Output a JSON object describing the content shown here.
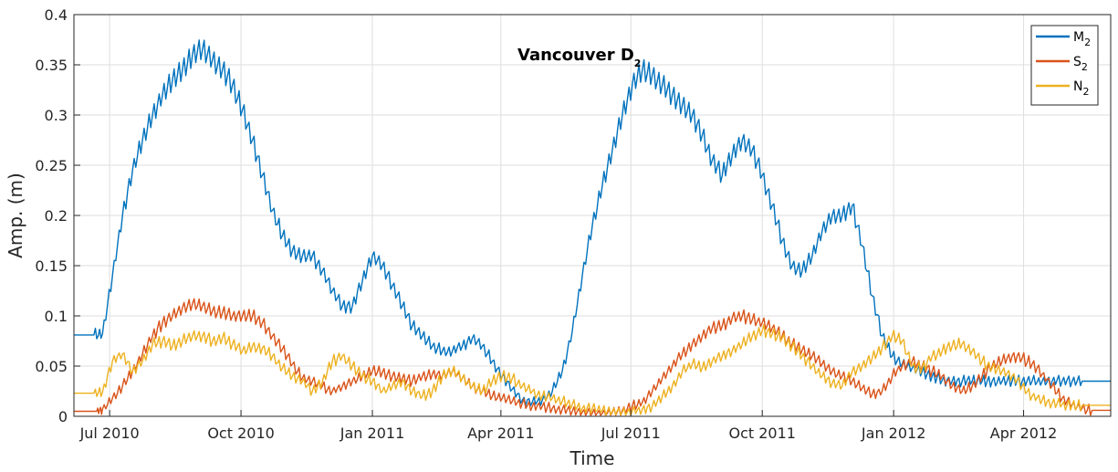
{
  "chart_data": {
    "type": "line",
    "title": "Vancouver D",
    "title_subscript": "2",
    "xlabel": "Time",
    "ylabel": "Amp. (m)",
    "ylim": [
      0,
      0.4
    ],
    "yticks": [
      0,
      0.05,
      0.1,
      0.15,
      0.2,
      0.25,
      0.3,
      0.35,
      0.4
    ],
    "ytick_labels": [
      "0",
      "0.05",
      "0.1",
      "0.15",
      "0.2",
      "0.25",
      "0.3",
      "0.35",
      "0.4"
    ],
    "xlim": [
      "2010-06-06",
      "2012-06-01"
    ],
    "xticks": [
      "2010-07-01",
      "2010-10-01",
      "2011-01-01",
      "2011-04-01",
      "2011-07-01",
      "2011-10-01",
      "2012-01-01",
      "2012-04-01"
    ],
    "xtick_labels": [
      "Jul 2010",
      "Oct 2010",
      "Jan 2011",
      "Apr 2011",
      "Jul 2011",
      "Oct 2011",
      "Jan 2012",
      "Apr 2012"
    ],
    "grid": true,
    "legend_position": "top-right",
    "series": [
      {
        "name": "M",
        "subscript": "2",
        "color": "#0072BD",
        "x": [
          "2010-06-06",
          "2010-06-20",
          "2010-06-26",
          "2010-07-03",
          "2010-07-10",
          "2010-07-17",
          "2010-07-24",
          "2010-07-31",
          "2010-08-07",
          "2010-08-14",
          "2010-08-21",
          "2010-08-28",
          "2010-09-04",
          "2010-09-11",
          "2010-09-18",
          "2010-09-25",
          "2010-10-02",
          "2010-10-09",
          "2010-10-16",
          "2010-10-23",
          "2010-10-30",
          "2010-11-06",
          "2010-11-13",
          "2010-11-20",
          "2010-11-27",
          "2010-12-04",
          "2010-12-11",
          "2010-12-18",
          "2010-12-25",
          "2011-01-01",
          "2011-01-08",
          "2011-01-15",
          "2011-01-22",
          "2011-01-29",
          "2011-02-05",
          "2011-02-12",
          "2011-02-19",
          "2011-02-26",
          "2011-03-05",
          "2011-03-12",
          "2011-03-19",
          "2011-03-26",
          "2011-04-02",
          "2011-04-09",
          "2011-04-16",
          "2011-04-23",
          "2011-04-30",
          "2011-05-07",
          "2011-05-14",
          "2011-05-21",
          "2011-05-28",
          "2011-06-04",
          "2011-06-11",
          "2011-06-18",
          "2011-06-25",
          "2011-07-02",
          "2011-07-09",
          "2011-07-16",
          "2011-07-23",
          "2011-07-30",
          "2011-08-06",
          "2011-08-13",
          "2011-08-20",
          "2011-08-27",
          "2011-09-03",
          "2011-09-10",
          "2011-09-17",
          "2011-09-24",
          "2011-10-01",
          "2011-10-08",
          "2011-10-15",
          "2011-10-22",
          "2011-10-29",
          "2011-11-05",
          "2011-11-12",
          "2011-11-19",
          "2011-11-26",
          "2011-12-03",
          "2011-12-10",
          "2011-12-17",
          "2011-12-24",
          "2011-12-31",
          "2012-01-07",
          "2012-01-14",
          "2012-01-21",
          "2012-01-28",
          "2012-02-04",
          "2012-02-11",
          "2012-02-18",
          "2012-02-25",
          "2012-03-03",
          "2012-03-10",
          "2012-03-17",
          "2012-03-24",
          "2012-03-31",
          "2012-04-07",
          "2012-04-14",
          "2012-04-21",
          "2012-04-28",
          "2012-05-05",
          "2012-05-12",
          "2012-05-19",
          "2012-06-01"
        ],
        "y": [
          0.081,
          0.081,
          0.082,
          0.14,
          0.2,
          0.245,
          0.275,
          0.3,
          0.32,
          0.335,
          0.345,
          0.36,
          0.365,
          0.355,
          0.345,
          0.33,
          0.305,
          0.275,
          0.24,
          0.205,
          0.18,
          0.165,
          0.16,
          0.16,
          0.145,
          0.125,
          0.11,
          0.11,
          0.135,
          0.16,
          0.15,
          0.13,
          0.11,
          0.09,
          0.08,
          0.07,
          0.065,
          0.065,
          0.07,
          0.078,
          0.07,
          0.055,
          0.04,
          0.027,
          0.016,
          0.014,
          0.016,
          0.025,
          0.045,
          0.085,
          0.14,
          0.19,
          0.23,
          0.265,
          0.3,
          0.33,
          0.345,
          0.34,
          0.33,
          0.32,
          0.31,
          0.3,
          0.28,
          0.255,
          0.24,
          0.26,
          0.275,
          0.265,
          0.24,
          0.21,
          0.175,
          0.15,
          0.145,
          0.16,
          0.185,
          0.2,
          0.2,
          0.21,
          0.17,
          0.12,
          0.08,
          0.06,
          0.052,
          0.048,
          0.045,
          0.04,
          0.036,
          0.035,
          0.035,
          0.035,
          0.035,
          0.035,
          0.035,
          0.035,
          0.035,
          0.035,
          0.035,
          0.035,
          0.035,
          0.035,
          0.035,
          0.035,
          0.035
        ]
      },
      {
        "name": "S",
        "subscript": "2",
        "color": "#D95319",
        "x": [
          "2010-06-06",
          "2010-06-22",
          "2010-06-26",
          "2010-07-03",
          "2010-07-10",
          "2010-07-17",
          "2010-07-24",
          "2010-07-31",
          "2010-08-07",
          "2010-08-14",
          "2010-08-21",
          "2010-08-28",
          "2010-09-04",
          "2010-09-11",
          "2010-09-18",
          "2010-09-25",
          "2010-10-02",
          "2010-10-09",
          "2010-10-16",
          "2010-10-23",
          "2010-10-30",
          "2010-11-06",
          "2010-11-13",
          "2010-11-20",
          "2010-11-27",
          "2010-12-04",
          "2010-12-11",
          "2010-12-18",
          "2010-12-25",
          "2011-01-01",
          "2011-01-08",
          "2011-01-15",
          "2011-01-22",
          "2011-01-29",
          "2011-02-05",
          "2011-02-12",
          "2011-02-19",
          "2011-02-26",
          "2011-03-05",
          "2011-03-12",
          "2011-03-19",
          "2011-03-26",
          "2011-04-02",
          "2011-04-09",
          "2011-04-16",
          "2011-04-23",
          "2011-04-30",
          "2011-05-07",
          "2011-05-14",
          "2011-05-21",
          "2011-05-28",
          "2011-06-04",
          "2011-06-11",
          "2011-06-18",
          "2011-06-25",
          "2011-07-02",
          "2011-07-09",
          "2011-07-16",
          "2011-07-23",
          "2011-07-30",
          "2011-08-06",
          "2011-08-13",
          "2011-08-20",
          "2011-08-27",
          "2011-09-03",
          "2011-09-10",
          "2011-09-17",
          "2011-09-24",
          "2011-10-01",
          "2011-10-08",
          "2011-10-15",
          "2011-10-22",
          "2011-10-29",
          "2011-11-05",
          "2011-11-12",
          "2011-11-19",
          "2011-11-26",
          "2011-12-03",
          "2011-12-10",
          "2011-12-17",
          "2011-12-24",
          "2011-12-31",
          "2012-01-07",
          "2012-01-14",
          "2012-01-21",
          "2012-01-28",
          "2012-02-04",
          "2012-02-11",
          "2012-02-18",
          "2012-02-25",
          "2012-03-03",
          "2012-03-10",
          "2012-03-17",
          "2012-03-24",
          "2012-03-31",
          "2012-04-07",
          "2012-04-14",
          "2012-04-21",
          "2012-04-28",
          "2012-05-05",
          "2012-05-12",
          "2012-05-19",
          "2012-06-01"
        ],
        "y": [
          0.005,
          0.005,
          0.007,
          0.018,
          0.03,
          0.045,
          0.062,
          0.08,
          0.093,
          0.1,
          0.108,
          0.112,
          0.11,
          0.105,
          0.103,
          0.1,
          0.1,
          0.1,
          0.093,
          0.08,
          0.067,
          0.052,
          0.038,
          0.035,
          0.03,
          0.025,
          0.03,
          0.035,
          0.04,
          0.045,
          0.044,
          0.04,
          0.038,
          0.035,
          0.04,
          0.042,
          0.04,
          0.045,
          0.038,
          0.03,
          0.025,
          0.02,
          0.018,
          0.015,
          0.013,
          0.01,
          0.01,
          0.008,
          0.007,
          0.005,
          0.004,
          0.003,
          0.003,
          0.004,
          0.006,
          0.01,
          0.014,
          0.025,
          0.038,
          0.05,
          0.062,
          0.072,
          0.08,
          0.088,
          0.09,
          0.098,
          0.1,
          0.096,
          0.093,
          0.088,
          0.08,
          0.072,
          0.066,
          0.06,
          0.052,
          0.045,
          0.04,
          0.035,
          0.028,
          0.022,
          0.025,
          0.04,
          0.05,
          0.055,
          0.05,
          0.045,
          0.04,
          0.03,
          0.025,
          0.03,
          0.04,
          0.05,
          0.055,
          0.06,
          0.058,
          0.052,
          0.042,
          0.03,
          0.018,
          0.012,
          0.008,
          0.006,
          0.006
        ]
      },
      {
        "name": "N",
        "subscript": "2",
        "color": "#EDB120",
        "x": [
          "2010-06-06",
          "2010-06-20",
          "2010-06-26",
          "2010-07-03",
          "2010-07-10",
          "2010-07-17",
          "2010-07-24",
          "2010-07-31",
          "2010-08-07",
          "2010-08-14",
          "2010-08-21",
          "2010-08-28",
          "2010-09-04",
          "2010-09-11",
          "2010-09-18",
          "2010-09-25",
          "2010-10-02",
          "2010-10-09",
          "2010-10-16",
          "2010-10-23",
          "2010-10-30",
          "2010-11-06",
          "2010-11-13",
          "2010-11-20",
          "2010-11-27",
          "2010-12-04",
          "2010-12-11",
          "2010-12-18",
          "2010-12-25",
          "2011-01-01",
          "2011-01-08",
          "2011-01-15",
          "2011-01-22",
          "2011-01-29",
          "2011-02-05",
          "2011-02-12",
          "2011-02-19",
          "2011-02-26",
          "2011-03-05",
          "2011-03-12",
          "2011-03-19",
          "2011-03-26",
          "2011-04-02",
          "2011-04-09",
          "2011-04-16",
          "2011-04-23",
          "2011-04-30",
          "2011-05-07",
          "2011-05-14",
          "2011-05-21",
          "2011-05-28",
          "2011-06-04",
          "2011-06-11",
          "2011-06-18",
          "2011-06-25",
          "2011-07-02",
          "2011-07-09",
          "2011-07-16",
          "2011-07-23",
          "2011-07-30",
          "2011-08-06",
          "2011-08-13",
          "2011-08-20",
          "2011-08-27",
          "2011-09-03",
          "2011-09-10",
          "2011-09-17",
          "2011-09-24",
          "2011-10-01",
          "2011-10-08",
          "2011-10-15",
          "2011-10-22",
          "2011-10-29",
          "2011-11-05",
          "2011-11-12",
          "2011-11-19",
          "2011-11-26",
          "2011-12-03",
          "2011-12-10",
          "2011-12-17",
          "2011-12-24",
          "2011-12-31",
          "2012-01-07",
          "2012-01-14",
          "2012-01-21",
          "2012-01-28",
          "2012-02-04",
          "2012-02-11",
          "2012-02-18",
          "2012-02-25",
          "2012-03-03",
          "2012-03-10",
          "2012-03-17",
          "2012-03-24",
          "2012-03-31",
          "2012-04-07",
          "2012-04-14",
          "2012-04-21",
          "2012-04-28",
          "2012-05-05",
          "2012-05-12",
          "2012-05-19",
          "2012-06-01"
        ],
        "y": [
          0.023,
          0.023,
          0.024,
          0.055,
          0.062,
          0.045,
          0.055,
          0.072,
          0.075,
          0.07,
          0.075,
          0.08,
          0.08,
          0.075,
          0.078,
          0.072,
          0.065,
          0.07,
          0.068,
          0.06,
          0.048,
          0.04,
          0.035,
          0.025,
          0.035,
          0.055,
          0.06,
          0.05,
          0.04,
          0.035,
          0.025,
          0.03,
          0.035,
          0.025,
          0.02,
          0.025,
          0.04,
          0.045,
          0.038,
          0.03,
          0.025,
          0.035,
          0.04,
          0.038,
          0.03,
          0.025,
          0.02,
          0.018,
          0.015,
          0.012,
          0.008,
          0.008,
          0.006,
          0.005,
          0.004,
          0.005,
          0.007,
          0.01,
          0.02,
          0.03,
          0.045,
          0.052,
          0.048,
          0.055,
          0.06,
          0.065,
          0.072,
          0.08,
          0.085,
          0.082,
          0.078,
          0.07,
          0.06,
          0.05,
          0.04,
          0.033,
          0.03,
          0.045,
          0.05,
          0.058,
          0.068,
          0.08,
          0.075,
          0.05,
          0.048,
          0.06,
          0.065,
          0.07,
          0.072,
          0.065,
          0.055,
          0.048,
          0.045,
          0.04,
          0.03,
          0.02,
          0.016,
          0.013,
          0.012,
          0.011,
          0.011,
          0.011,
          0.011
        ]
      }
    ]
  }
}
